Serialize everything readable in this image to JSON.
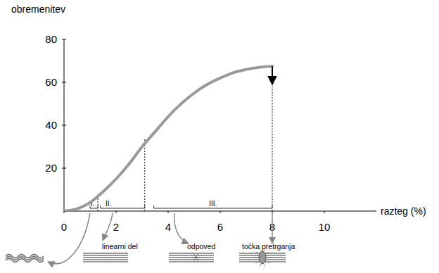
{
  "chart_data": {
    "type": "line",
    "y_label": "obremenitev",
    "x_label": "razteg (%)",
    "xlim": [
      0,
      12
    ],
    "ylim": [
      0,
      80
    ],
    "xticks": [
      0,
      2,
      4,
      6,
      8,
      10
    ],
    "yticks": [
      20,
      40,
      60,
      80
    ],
    "x": [
      0,
      0.5,
      1,
      1.5,
      2,
      2.5,
      3,
      3.5,
      4,
      4.5,
      5,
      5.5,
      6,
      6.5,
      7,
      7.5,
      8
    ],
    "values": [
      0,
      1,
      4,
      9,
      15,
      22,
      30,
      37,
      44,
      50,
      55,
      59,
      62,
      64.5,
      66,
      67,
      67.5
    ],
    "color": "#999999",
    "regions": [
      {
        "label": "I.",
        "start": 1.0,
        "end": 1.3
      },
      {
        "label": "II.",
        "start": 1.4,
        "end": 3.1
      },
      {
        "label": "III.",
        "start": 3.45,
        "end": 8.0
      }
    ],
    "dividers": [
      {
        "x": 1.3,
        "y": 8
      },
      {
        "x": 3.1,
        "y": 34
      }
    ],
    "failure": {
      "x": 8,
      "y": 67.5
    },
    "annotations": [
      "linearni del",
      "odpoved",
      "točka pretrganja"
    ]
  }
}
